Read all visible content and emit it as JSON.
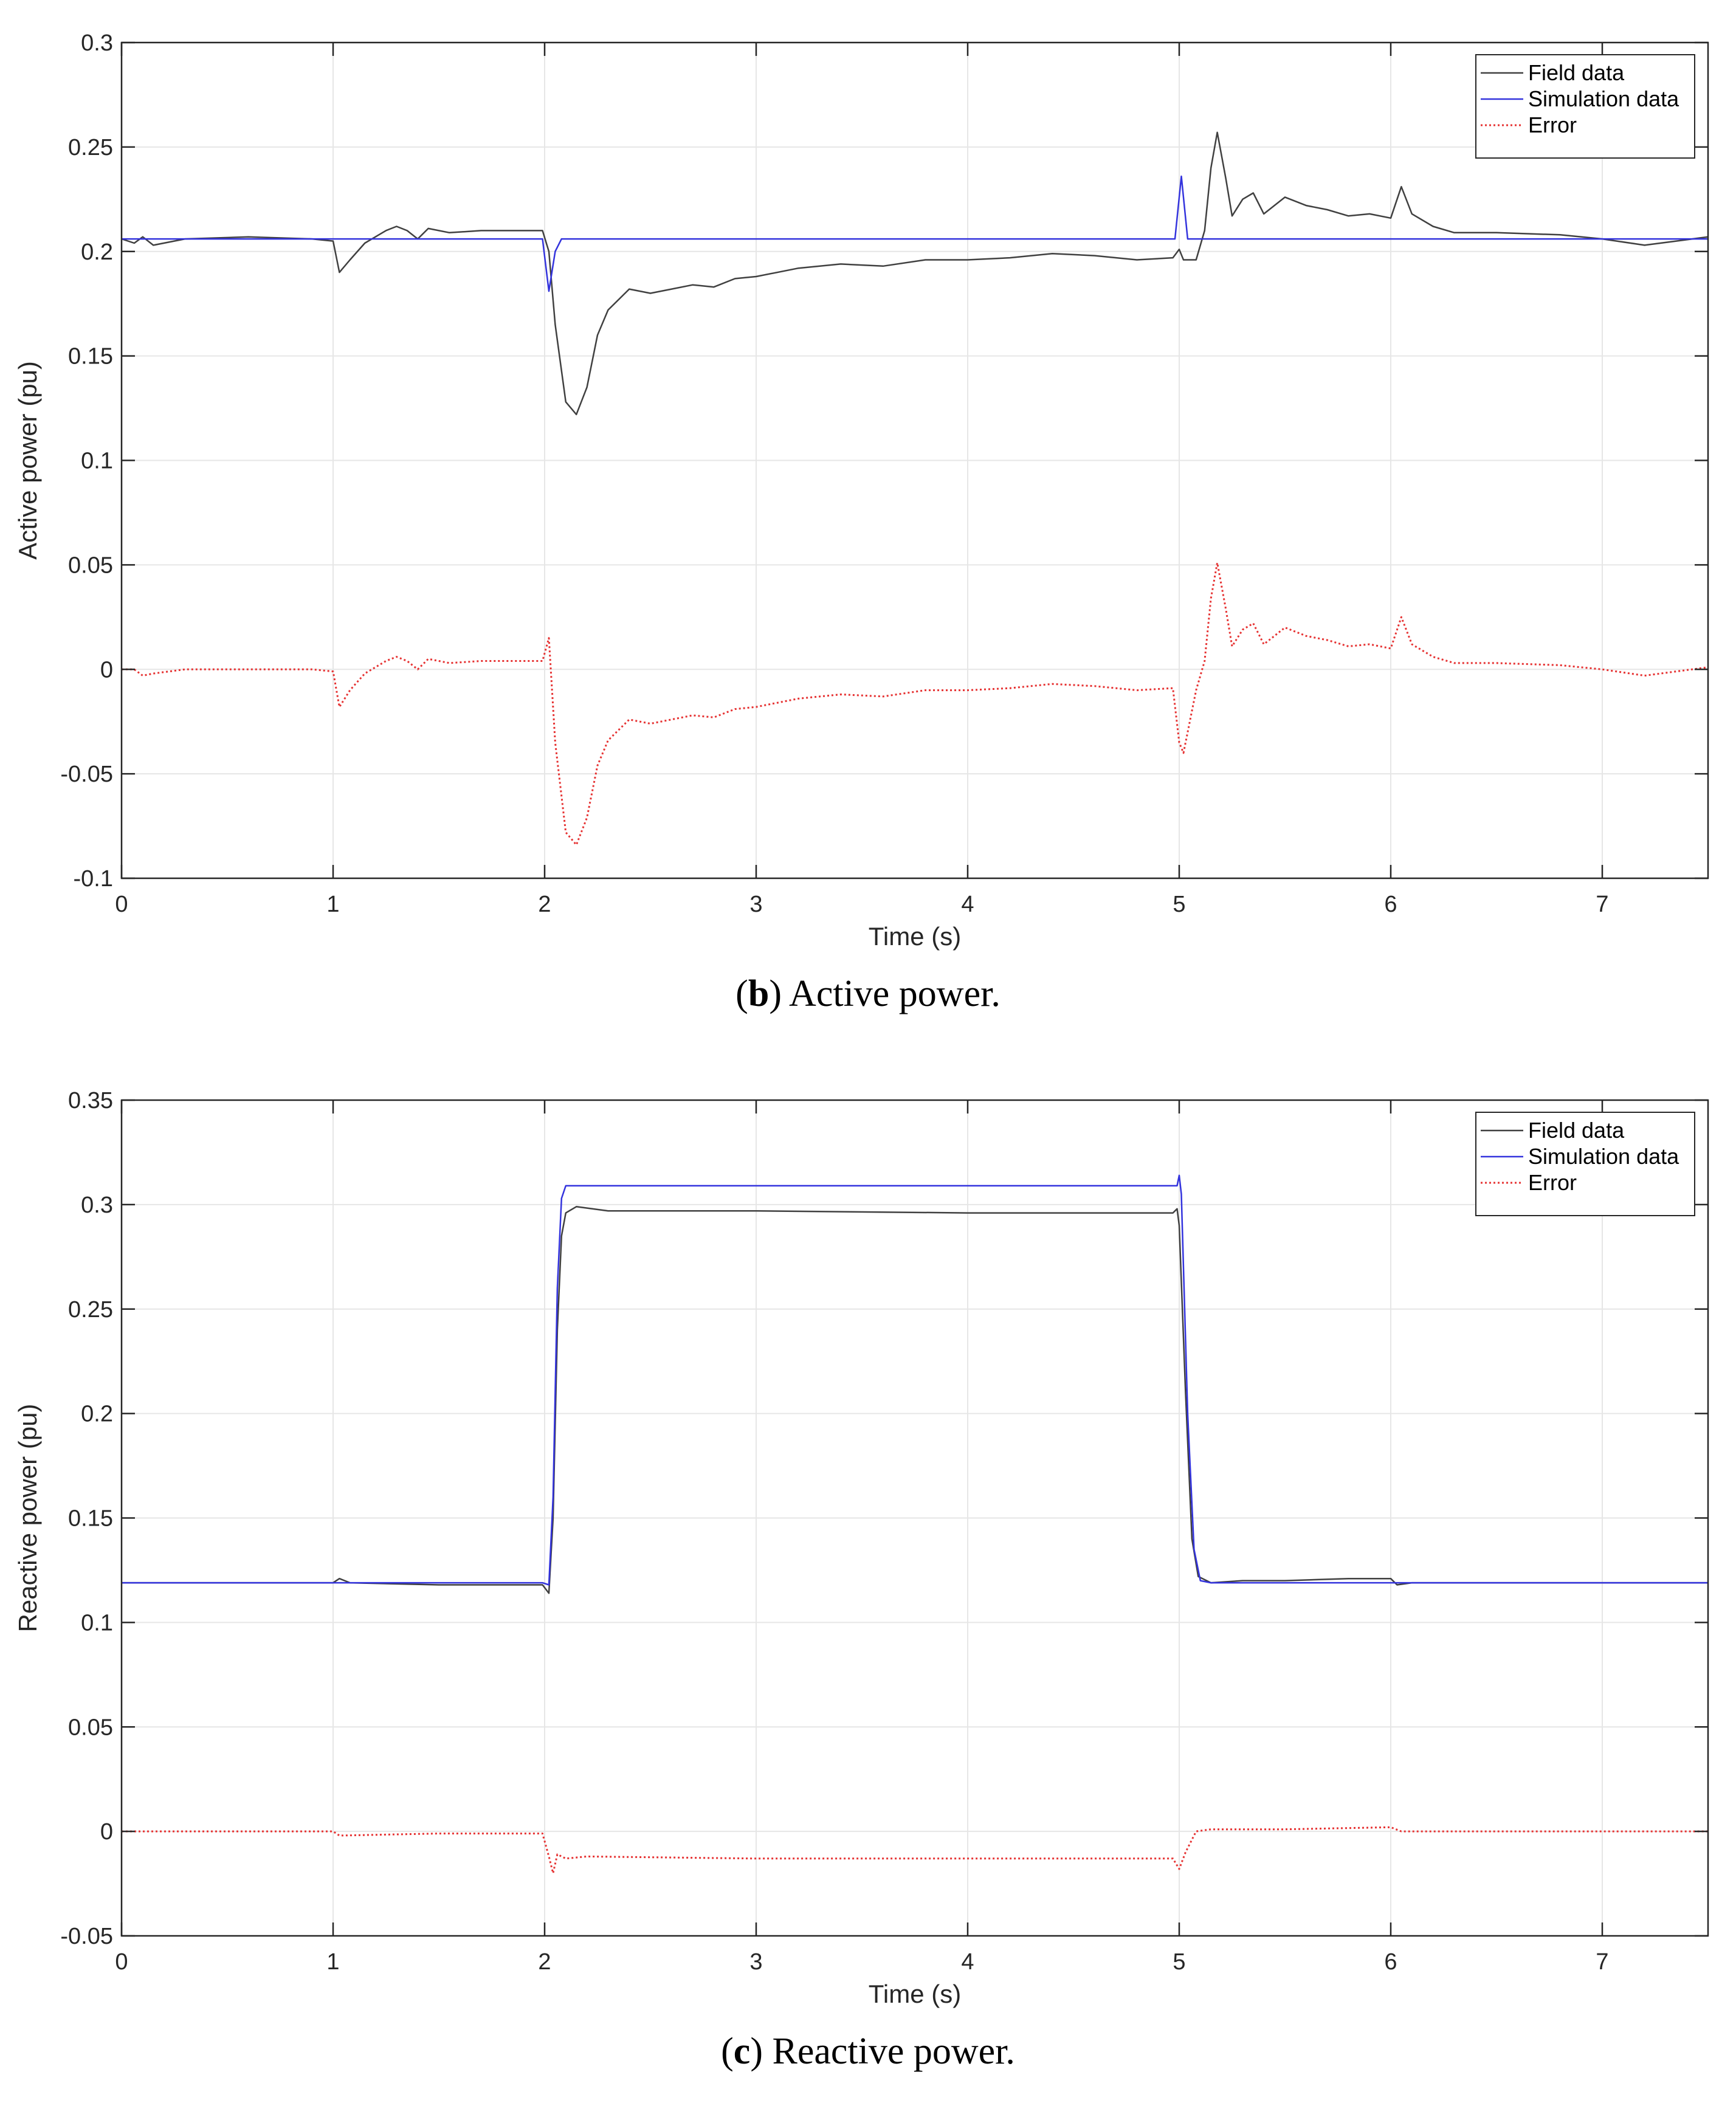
{
  "chart_data": [
    {
      "type": "line",
      "caption_label": "b",
      "caption_text": "Active power.",
      "xlabel": "Time (s)",
      "ylabel": "Active power (pu)",
      "xlim": [
        0,
        7.5
      ],
      "ylim": [
        -0.1,
        0.3
      ],
      "xticks": [
        "0",
        "1",
        "2",
        "3",
        "4",
        "5",
        "6",
        "7"
      ],
      "yticks": [
        "-0.1",
        "-0.05",
        "0",
        "0.05",
        "0.1",
        "0.15",
        "0.2",
        "0.25",
        "0.3"
      ],
      "grid": true,
      "legend_position": "top-right",
      "legend": [
        "Field data",
        "Simulation data",
        "Error"
      ],
      "series": [
        {
          "name": "Field data",
          "color": "#404040",
          "style": "solid",
          "points": [
            [
              0,
              0.206
            ],
            [
              0.06,
              0.204
            ],
            [
              0.1,
              0.207
            ],
            [
              0.15,
              0.203
            ],
            [
              0.3,
              0.206
            ],
            [
              0.6,
              0.207
            ],
            [
              0.9,
              0.206
            ],
            [
              1.0,
              0.205
            ],
            [
              1.03,
              0.19
            ],
            [
              1.08,
              0.196
            ],
            [
              1.15,
              0.204
            ],
            [
              1.2,
              0.207
            ],
            [
              1.25,
              0.21
            ],
            [
              1.3,
              0.212
            ],
            [
              1.35,
              0.21
            ],
            [
              1.4,
              0.206
            ],
            [
              1.45,
              0.211
            ],
            [
              1.55,
              0.209
            ],
            [
              1.7,
              0.21
            ],
            [
              1.9,
              0.21
            ],
            [
              1.99,
              0.21
            ],
            [
              2.02,
              0.2
            ],
            [
              2.05,
              0.165
            ],
            [
              2.1,
              0.128
            ],
            [
              2.15,
              0.122
            ],
            [
              2.2,
              0.135
            ],
            [
              2.25,
              0.16
            ],
            [
              2.3,
              0.172
            ],
            [
              2.4,
              0.182
            ],
            [
              2.5,
              0.18
            ],
            [
              2.6,
              0.182
            ],
            [
              2.7,
              0.184
            ],
            [
              2.8,
              0.183
            ],
            [
              2.9,
              0.187
            ],
            [
              3.0,
              0.188
            ],
            [
              3.2,
              0.192
            ],
            [
              3.4,
              0.194
            ],
            [
              3.6,
              0.193
            ],
            [
              3.8,
              0.196
            ],
            [
              4.0,
              0.196
            ],
            [
              4.2,
              0.197
            ],
            [
              4.4,
              0.199
            ],
            [
              4.6,
              0.198
            ],
            [
              4.8,
              0.196
            ],
            [
              4.97,
              0.197
            ],
            [
              5.0,
              0.201
            ],
            [
              5.02,
              0.196
            ],
            [
              5.08,
              0.196
            ],
            [
              5.12,
              0.21
            ],
            [
              5.15,
              0.24
            ],
            [
              5.18,
              0.257
            ],
            [
              5.22,
              0.235
            ],
            [
              5.25,
              0.217
            ],
            [
              5.3,
              0.225
            ],
            [
              5.35,
              0.228
            ],
            [
              5.4,
              0.218
            ],
            [
              5.45,
              0.222
            ],
            [
              5.5,
              0.226
            ],
            [
              5.6,
              0.222
            ],
            [
              5.7,
              0.22
            ],
            [
              5.8,
              0.217
            ],
            [
              5.9,
              0.218
            ],
            [
              6.0,
              0.216
            ],
            [
              6.05,
              0.231
            ],
            [
              6.1,
              0.218
            ],
            [
              6.2,
              0.212
            ],
            [
              6.3,
              0.209
            ],
            [
              6.5,
              0.209
            ],
            [
              6.8,
              0.208
            ],
            [
              7.0,
              0.206
            ],
            [
              7.2,
              0.203
            ],
            [
              7.35,
              0.205
            ],
            [
              7.5,
              0.207
            ]
          ]
        },
        {
          "name": "Simulation data",
          "color": "#3333dd",
          "style": "solid",
          "points": [
            [
              0,
              0.206
            ],
            [
              1.99,
              0.206
            ],
            [
              2.02,
              0.181
            ],
            [
              2.05,
              0.2
            ],
            [
              2.08,
              0.206
            ],
            [
              4.98,
              0.206
            ],
            [
              5.01,
              0.236
            ],
            [
              5.04,
              0.206
            ],
            [
              7.5,
              0.206
            ]
          ]
        },
        {
          "name": "Error",
          "color": "#e63333",
          "style": "dotted",
          "points": [
            [
              0,
              0.0
            ],
            [
              0.06,
              0.0
            ],
            [
              0.1,
              -0.003
            ],
            [
              0.15,
              -0.002
            ],
            [
              0.3,
              0.0
            ],
            [
              0.6,
              0.0
            ],
            [
              0.9,
              0.0
            ],
            [
              1.0,
              -0.001
            ],
            [
              1.03,
              -0.018
            ],
            [
              1.08,
              -0.01
            ],
            [
              1.15,
              -0.002
            ],
            [
              1.2,
              0.001
            ],
            [
              1.25,
              0.004
            ],
            [
              1.3,
              0.006
            ],
            [
              1.35,
              0.004
            ],
            [
              1.4,
              0.0
            ],
            [
              1.45,
              0.005
            ],
            [
              1.55,
              0.003
            ],
            [
              1.7,
              0.004
            ],
            [
              1.9,
              0.004
            ],
            [
              1.99,
              0.004
            ],
            [
              2.02,
              0.015
            ],
            [
              2.05,
              -0.035
            ],
            [
              2.1,
              -0.078
            ],
            [
              2.15,
              -0.084
            ],
            [
              2.2,
              -0.071
            ],
            [
              2.25,
              -0.046
            ],
            [
              2.3,
              -0.034
            ],
            [
              2.4,
              -0.024
            ],
            [
              2.5,
              -0.026
            ],
            [
              2.6,
              -0.024
            ],
            [
              2.7,
              -0.022
            ],
            [
              2.8,
              -0.023
            ],
            [
              2.9,
              -0.019
            ],
            [
              3.0,
              -0.018
            ],
            [
              3.2,
              -0.014
            ],
            [
              3.4,
              -0.012
            ],
            [
              3.6,
              -0.013
            ],
            [
              3.8,
              -0.01
            ],
            [
              4.0,
              -0.01
            ],
            [
              4.2,
              -0.009
            ],
            [
              4.4,
              -0.007
            ],
            [
              4.6,
              -0.008
            ],
            [
              4.8,
              -0.01
            ],
            [
              4.97,
              -0.009
            ],
            [
              5.0,
              -0.035
            ],
            [
              5.02,
              -0.04
            ],
            [
              5.08,
              -0.01
            ],
            [
              5.12,
              0.004
            ],
            [
              5.15,
              0.034
            ],
            [
              5.18,
              0.051
            ],
            [
              5.22,
              0.029
            ],
            [
              5.25,
              0.011
            ],
            [
              5.3,
              0.019
            ],
            [
              5.35,
              0.022
            ],
            [
              5.4,
              0.012
            ],
            [
              5.45,
              0.016
            ],
            [
              5.5,
              0.02
            ],
            [
              5.6,
              0.016
            ],
            [
              5.7,
              0.014
            ],
            [
              5.8,
              0.011
            ],
            [
              5.9,
              0.012
            ],
            [
              6.0,
              0.01
            ],
            [
              6.05,
              0.025
            ],
            [
              6.1,
              0.012
            ],
            [
              6.2,
              0.006
            ],
            [
              6.3,
              0.003
            ],
            [
              6.5,
              0.003
            ],
            [
              6.8,
              0.002
            ],
            [
              7.0,
              0.0
            ],
            [
              7.2,
              -0.003
            ],
            [
              7.35,
              -0.001
            ],
            [
              7.5,
              0.001
            ]
          ]
        }
      ]
    },
    {
      "type": "line",
      "caption_label": "c",
      "caption_text": "Reactive power.",
      "xlabel": "Time (s)",
      "ylabel": "Reactive power (pu)",
      "xlim": [
        0,
        7.5
      ],
      "ylim": [
        -0.05,
        0.35
      ],
      "xticks": [
        "0",
        "1",
        "2",
        "3",
        "4",
        "5",
        "6",
        "7"
      ],
      "yticks": [
        "-0.05",
        "0",
        "0.05",
        "0.1",
        "0.15",
        "0.2",
        "0.25",
        "0.3",
        "0.35"
      ],
      "grid": true,
      "legend_position": "top-right",
      "legend": [
        "Field data",
        "Simulation data",
        "Error"
      ],
      "series": [
        {
          "name": "Field data",
          "color": "#404040",
          "style": "solid",
          "points": [
            [
              0,
              0.119
            ],
            [
              0.9,
              0.119
            ],
            [
              1.0,
              0.119
            ],
            [
              1.03,
              0.121
            ],
            [
              1.08,
              0.119
            ],
            [
              1.5,
              0.118
            ],
            [
              1.99,
              0.118
            ],
            [
              2.02,
              0.114
            ],
            [
              2.04,
              0.15
            ],
            [
              2.06,
              0.24
            ],
            [
              2.08,
              0.285
            ],
            [
              2.1,
              0.296
            ],
            [
              2.15,
              0.299
            ],
            [
              2.3,
              0.297
            ],
            [
              3.0,
              0.297
            ],
            [
              4.0,
              0.296
            ],
            [
              4.97,
              0.296
            ],
            [
              4.99,
              0.298
            ],
            [
              5.0,
              0.29
            ],
            [
              5.03,
              0.21
            ],
            [
              5.06,
              0.14
            ],
            [
              5.09,
              0.122
            ],
            [
              5.15,
              0.119
            ],
            [
              5.3,
              0.12
            ],
            [
              5.5,
              0.12
            ],
            [
              5.8,
              0.121
            ],
            [
              6.0,
              0.121
            ],
            [
              6.03,
              0.118
            ],
            [
              6.1,
              0.119
            ],
            [
              7.5,
              0.119
            ]
          ]
        },
        {
          "name": "Simulation data",
          "color": "#3333dd",
          "style": "solid",
          "points": [
            [
              0,
              0.119
            ],
            [
              1.99,
              0.119
            ],
            [
              2.02,
              0.118
            ],
            [
              2.04,
              0.16
            ],
            [
              2.06,
              0.26
            ],
            [
              2.08,
              0.303
            ],
            [
              2.1,
              0.309
            ],
            [
              4.99,
              0.309
            ],
            [
              5.0,
              0.314
            ],
            [
              5.01,
              0.305
            ],
            [
              5.04,
              0.2
            ],
            [
              5.07,
              0.135
            ],
            [
              5.1,
              0.12
            ],
            [
              5.15,
              0.119
            ],
            [
              7.5,
              0.119
            ]
          ]
        },
        {
          "name": "Error",
          "color": "#e63333",
          "style": "dotted",
          "points": [
            [
              0,
              0.0
            ],
            [
              1.0,
              0.0
            ],
            [
              1.03,
              -0.002
            ],
            [
              1.5,
              -0.001
            ],
            [
              1.99,
              -0.001
            ],
            [
              2.02,
              -0.012
            ],
            [
              2.04,
              -0.02
            ],
            [
              2.06,
              -0.011
            ],
            [
              2.1,
              -0.013
            ],
            [
              2.2,
              -0.012
            ],
            [
              3.0,
              -0.013
            ],
            [
              4.0,
              -0.013
            ],
            [
              4.97,
              -0.013
            ],
            [
              5.0,
              -0.018
            ],
            [
              5.03,
              -0.01
            ],
            [
              5.08,
              0.0
            ],
            [
              5.15,
              0.001
            ],
            [
              5.5,
              0.001
            ],
            [
              6.0,
              0.002
            ],
            [
              6.05,
              0.0
            ],
            [
              6.2,
              0.0
            ],
            [
              7.5,
              0.0
            ]
          ]
        }
      ]
    }
  ]
}
